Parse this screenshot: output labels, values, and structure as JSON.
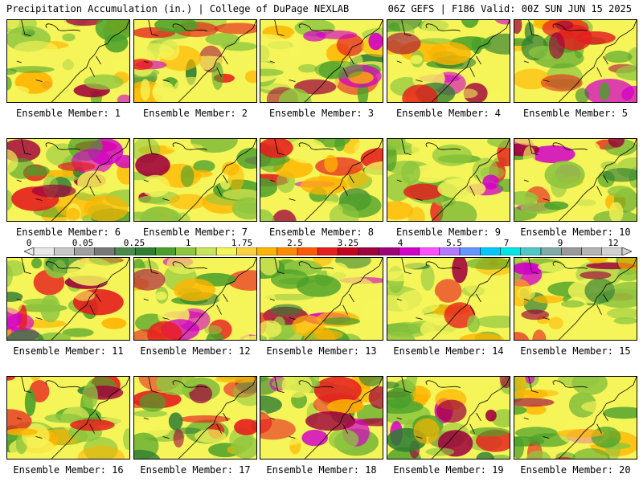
{
  "header": {
    "left": "Precipitation Accumulation (in.) | College of DuPage NEXLAB",
    "right": "06Z GEFS | F186 Valid: 00Z SUN JUN 15 2025"
  },
  "members": [
    "Ensemble Member: 1",
    "Ensemble Member: 2",
    "Ensemble Member: 3",
    "Ensemble Member: 4",
    "Ensemble Member: 5",
    "Ensemble Member: 6",
    "Ensemble Member: 7",
    "Ensemble Member: 8",
    "Ensemble Member: 9",
    "Ensemble Member: 10",
    "Ensemble Member: 11",
    "Ensemble Member: 12",
    "Ensemble Member: 13",
    "Ensemble Member: 14",
    "Ensemble Member: 15",
    "Ensemble Member: 16",
    "Ensemble Member: 17",
    "Ensemble Member: 18",
    "Ensemble Member: 19",
    "Ensemble Member: 20"
  ],
  "colorbar": {
    "tick_labels": [
      "0",
      "0.05",
      "0.25",
      "1",
      "1.75",
      "2.5",
      "3.25",
      "4",
      "5.5",
      "7",
      "9",
      "12"
    ],
    "colors": [
      "#e8e8e8",
      "#c8c8c8",
      "#a0a0a0",
      "#787878",
      "#4a8a4a",
      "#2e7d32",
      "#4aa02a",
      "#8ec63f",
      "#c8e65a",
      "#f5f55a",
      "#ffd23c",
      "#ffb400",
      "#ff8c00",
      "#ff5a00",
      "#e61e1e",
      "#c8001e",
      "#a0003c",
      "#a00078",
      "#d200c8",
      "#ff50ff",
      "#b478ff",
      "#6496ff",
      "#00c8ff",
      "#00e6e6",
      "#50c8c8",
      "#82aaaa",
      "#9a9a9a",
      "#b4b4b4",
      "#d2d2d2"
    ]
  },
  "palette": {
    "green_dark": "#2e7d32",
    "green": "#4aa02a",
    "green_light": "#8ec63f",
    "yellow": "#f5f55a",
    "orange": "#ffb400",
    "red": "#e61e1e",
    "maroon": "#a0003c",
    "magenta": "#d200c8",
    "pink": "#ff50ff"
  }
}
